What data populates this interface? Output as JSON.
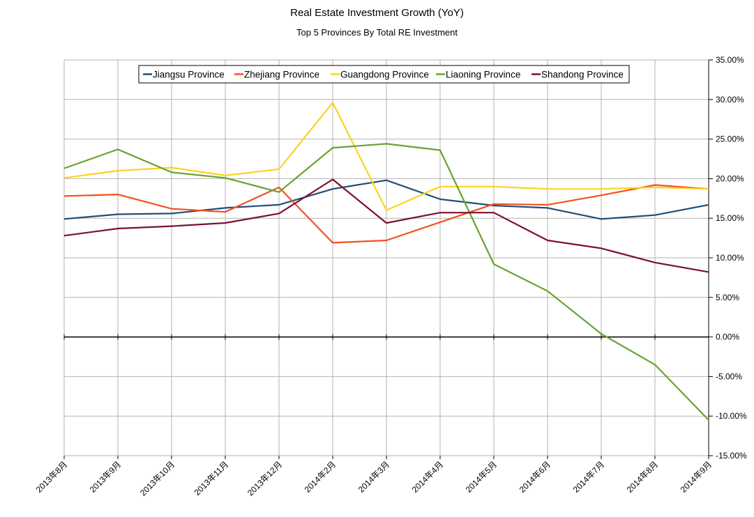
{
  "chart_data": {
    "type": "line",
    "title": "Real Estate Investment Growth (YoY)",
    "subtitle": "Top 5 Provinces By Total RE Investment",
    "xlabel": "",
    "ylabel": "",
    "y_axis_position": "right",
    "ylim": [
      -0.15,
      0.35
    ],
    "y_ticks": [
      0.35,
      0.3,
      0.25,
      0.2,
      0.15,
      0.1,
      0.05,
      0.0,
      -0.05,
      -0.1,
      -0.15
    ],
    "y_tick_labels": [
      "35.00%",
      "30.00%",
      "25.00%",
      "20.00%",
      "15.00%",
      "10.00%",
      "5.00%",
      "0.00%",
      "-5.00%",
      "-10.00%",
      "-15.00%"
    ],
    "grid": true,
    "legend_position": "top",
    "categories": [
      "2013年8月",
      "2013年9月",
      "2013年10月",
      "2013年11月",
      "2013年12月",
      "2014年2月",
      "2014年3月",
      "2014年4月",
      "2014年5月",
      "2014年6月",
      "2014年7月",
      "2014年8月",
      "2014年9月"
    ],
    "series": [
      {
        "name": "Jiangsu Province",
        "color": "#1f4e79",
        "values": [
          0.149,
          0.155,
          0.156,
          0.163,
          0.167,
          0.187,
          0.198,
          0.174,
          0.166,
          0.163,
          0.149,
          0.154,
          0.167
        ]
      },
      {
        "name": "Zhejiang Province",
        "color": "#f4511e",
        "values": [
          0.178,
          0.18,
          0.162,
          0.158,
          0.189,
          0.119,
          0.122,
          0.145,
          0.168,
          0.167,
          0.179,
          0.192,
          0.187
        ]
      },
      {
        "name": "Guangdong Province",
        "color": "#fbd31f",
        "values": [
          0.201,
          0.21,
          0.214,
          0.204,
          0.212,
          0.296,
          0.16,
          0.19,
          0.19,
          0.187,
          0.187,
          0.189,
          0.187
        ]
      },
      {
        "name": "Liaoning Province",
        "color": "#66a330",
        "values": [
          0.213,
          0.237,
          0.208,
          0.201,
          0.183,
          0.239,
          0.244,
          0.236,
          0.092,
          0.058,
          0.004,
          -0.035,
          -0.105
        ]
      },
      {
        "name": "Shandong Province",
        "color": "#7a1030",
        "values": [
          0.128,
          0.137,
          0.14,
          0.144,
          0.156,
          0.199,
          0.144,
          0.157,
          0.157,
          0.122,
          0.112,
          0.094,
          0.082
        ]
      }
    ]
  }
}
